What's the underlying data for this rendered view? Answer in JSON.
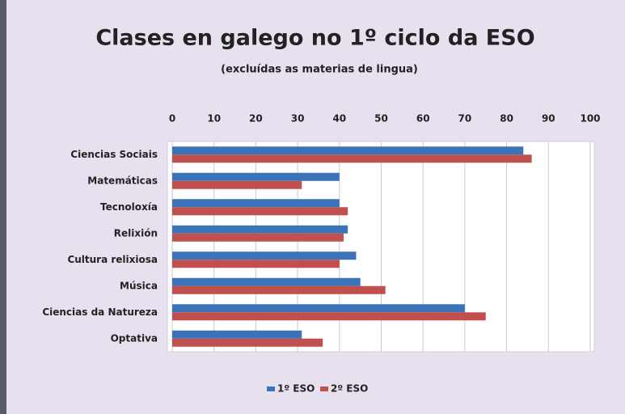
{
  "chart_data": {
    "type": "barh",
    "title": "Clases en galego no 1º ciclo da ESO",
    "subtitle": "(excluídas as materias de lingua)",
    "categories": [
      "Ciencias Sociais",
      "Matemáticas",
      "Tecnoloxía",
      "Relixión",
      "Cultura relixiosa",
      "Música",
      "Ciencias da Natureza",
      "Optativa"
    ],
    "series": [
      {
        "name": "1º ESO",
        "color": "#3b73b9",
        "values": [
          84,
          40,
          40,
          42,
          44,
          45,
          70,
          31
        ]
      },
      {
        "name": "2º ESO",
        "color": "#c0504d",
        "values": [
          86,
          31,
          42,
          41,
          40,
          51,
          75,
          36
        ]
      }
    ],
    "xlim": [
      0,
      100
    ],
    "xticks": [
      0,
      10,
      20,
      30,
      40,
      50,
      60,
      70,
      80,
      90,
      100
    ],
    "grid": true,
    "legend": "bottom"
  }
}
